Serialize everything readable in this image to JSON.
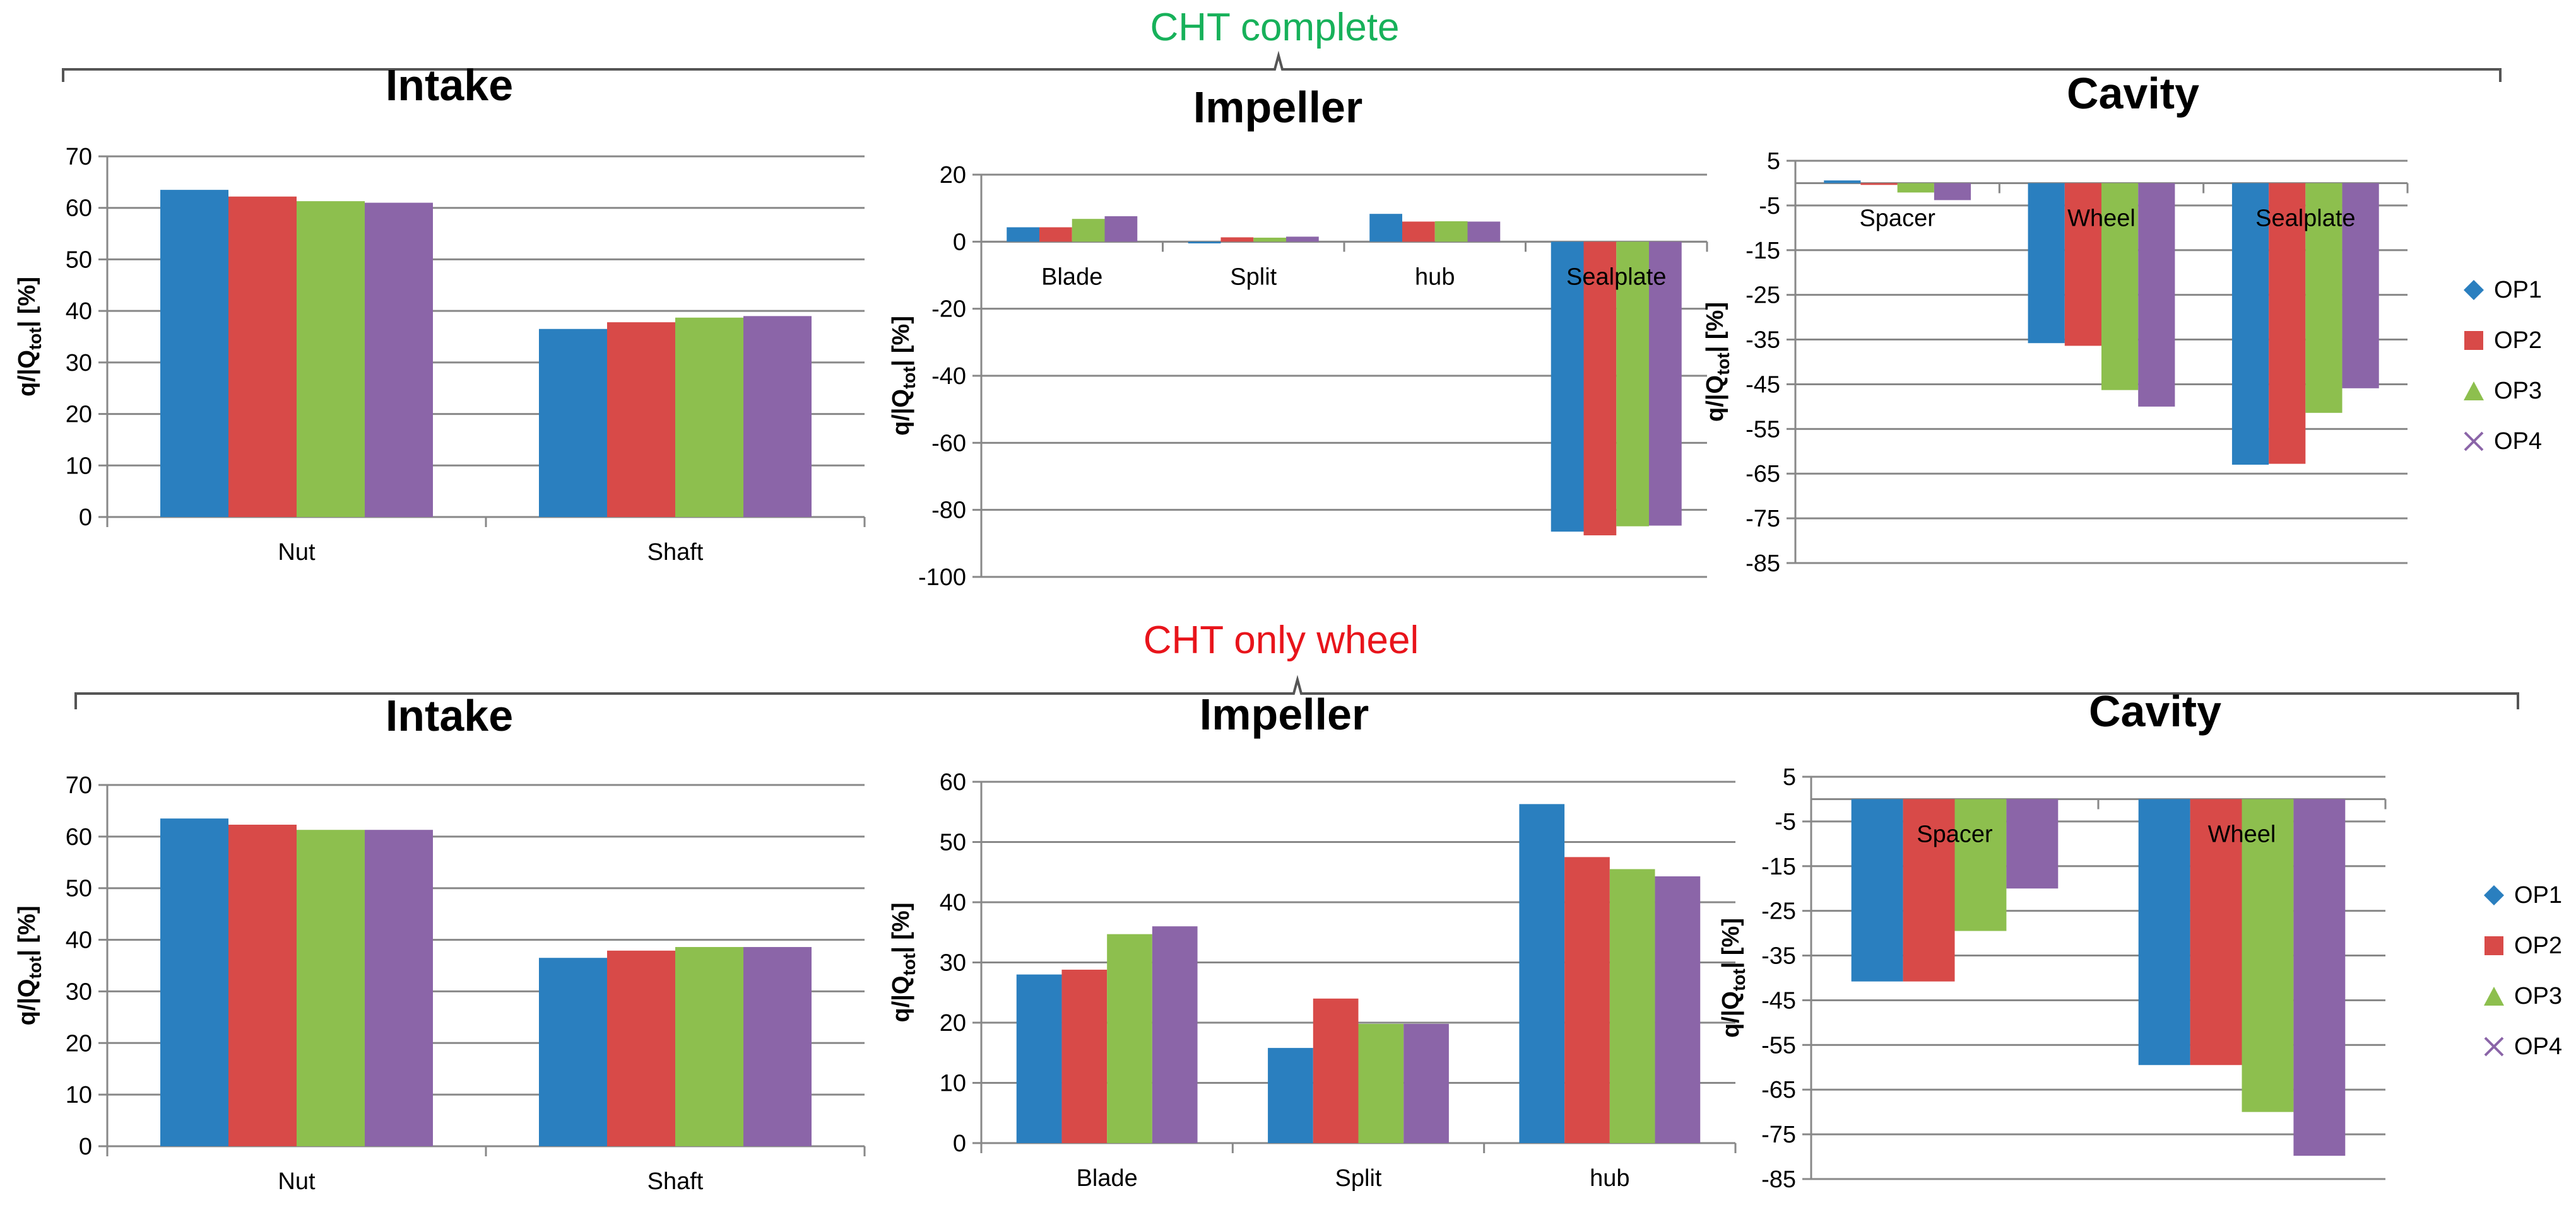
{
  "colors": {
    "OP1": "#2a7fbf",
    "OP2": "#d84a48",
    "OP3": "#8dbf4e",
    "OP4": "#8b65a8",
    "section_top": "#17b15a",
    "section_bottom": "#e8141b"
  },
  "sections": {
    "top": "CHT complete",
    "bottom": "CHT only wheel"
  },
  "legend": {
    "top": [
      "OP1",
      "OP2",
      "OP3",
      "OP4"
    ],
    "bottom": [
      "OP1",
      "OP2",
      "OP3",
      "OP4"
    ],
    "marker_icons": [
      "diamond-icon",
      "square-icon",
      "triangle-icon",
      "cross-icon"
    ]
  },
  "chart_data": [
    {
      "id": "top-intake",
      "type": "bar",
      "title": "Intake",
      "ylabel": "q/|Q_tot| [%]",
      "ylim": [
        0,
        70
      ],
      "ystep": 10,
      "categories": [
        "Nut",
        "Shaft"
      ],
      "label_pos": "bottom",
      "series": [
        {
          "name": "OP1",
          "values": [
            63.5,
            36.5
          ]
        },
        {
          "name": "OP2",
          "values": [
            62.2,
            37.8
          ]
        },
        {
          "name": "OP3",
          "values": [
            61.3,
            38.7
          ]
        },
        {
          "name": "OP4",
          "values": [
            61.0,
            39.0
          ]
        }
      ]
    },
    {
      "id": "top-impeller",
      "type": "bar",
      "title": "Impeller",
      "ylabel": "q/|Q_tot| [%]",
      "ylim": [
        -100,
        20
      ],
      "ystep": 20,
      "categories": [
        "Blade",
        "Split",
        "hub",
        "Sealplate"
      ],
      "label_pos": "inside",
      "series": [
        {
          "name": "OP1",
          "values": [
            4.3,
            -0.5,
            8.3,
            -86.5
          ]
        },
        {
          "name": "OP2",
          "values": [
            4.3,
            1.3,
            6.0,
            -87.6
          ]
        },
        {
          "name": "OP3",
          "values": [
            6.8,
            1.2,
            6.1,
            -84.9
          ]
        },
        {
          "name": "OP4",
          "values": [
            7.6,
            1.5,
            6.0,
            -84.7
          ]
        }
      ]
    },
    {
      "id": "top-cavity",
      "type": "bar",
      "title": "Cavity",
      "ylabel": "q/|Q_tot| [%]",
      "ylim": [
        -85,
        5
      ],
      "ystep": 10,
      "categories": [
        "Spacer",
        "Wheel",
        "Sealplate"
      ],
      "label_pos": "inside",
      "series": [
        {
          "name": "OP1",
          "values": [
            0.6,
            -35.8,
            -63.0
          ]
        },
        {
          "name": "OP2",
          "values": [
            -0.4,
            -36.4,
            -62.8
          ]
        },
        {
          "name": "OP3",
          "values": [
            -2.1,
            -46.3,
            -51.4
          ]
        },
        {
          "name": "OP4",
          "values": [
            -3.8,
            -50.0,
            -45.9
          ]
        }
      ]
    },
    {
      "id": "bottom-intake",
      "type": "bar",
      "title": "Intake",
      "ylabel": "q/|Q_tot| [%]",
      "ylim": [
        0,
        70
      ],
      "ystep": 10,
      "categories": [
        "Nut",
        "Shaft"
      ],
      "label_pos": "bottom",
      "series": [
        {
          "name": "OP1",
          "values": [
            63.5,
            36.5
          ]
        },
        {
          "name": "OP2",
          "values": [
            62.3,
            37.9
          ]
        },
        {
          "name": "OP3",
          "values": [
            61.3,
            38.6
          ]
        },
        {
          "name": "OP4",
          "values": [
            61.3,
            38.6
          ]
        }
      ]
    },
    {
      "id": "bottom-impeller",
      "type": "bar",
      "title": "Impeller",
      "ylabel": "q/|Q_tot| [%]",
      "ylim": [
        0,
        60
      ],
      "ystep": 10,
      "categories": [
        "Blade",
        "Split",
        "hub"
      ],
      "label_pos": "bottom",
      "series": [
        {
          "name": "OP1",
          "values": [
            28.0,
            15.8,
            56.3
          ]
        },
        {
          "name": "OP2",
          "values": [
            28.8,
            24.0,
            47.5
          ]
        },
        {
          "name": "OP3",
          "values": [
            34.7,
            19.8,
            45.5
          ]
        },
        {
          "name": "OP4",
          "values": [
            36.0,
            19.8,
            44.3
          ]
        }
      ]
    },
    {
      "id": "bottom-cavity",
      "type": "bar",
      "title": "Cavity",
      "ylabel": "q/|Q_tot| [%]",
      "ylim": [
        -85,
        5
      ],
      "ystep": 10,
      "categories": [
        "Spacer",
        "Wheel"
      ],
      "label_pos": "inside",
      "series": [
        {
          "name": "OP1",
          "values": [
            -40.8,
            -59.5
          ]
        },
        {
          "name": "OP2",
          "values": [
            -40.8,
            -59.5
          ]
        },
        {
          "name": "OP3",
          "values": [
            -29.5,
            -70.0
          ]
        },
        {
          "name": "OP4",
          "values": [
            -20.0,
            -79.8
          ]
        }
      ]
    }
  ]
}
